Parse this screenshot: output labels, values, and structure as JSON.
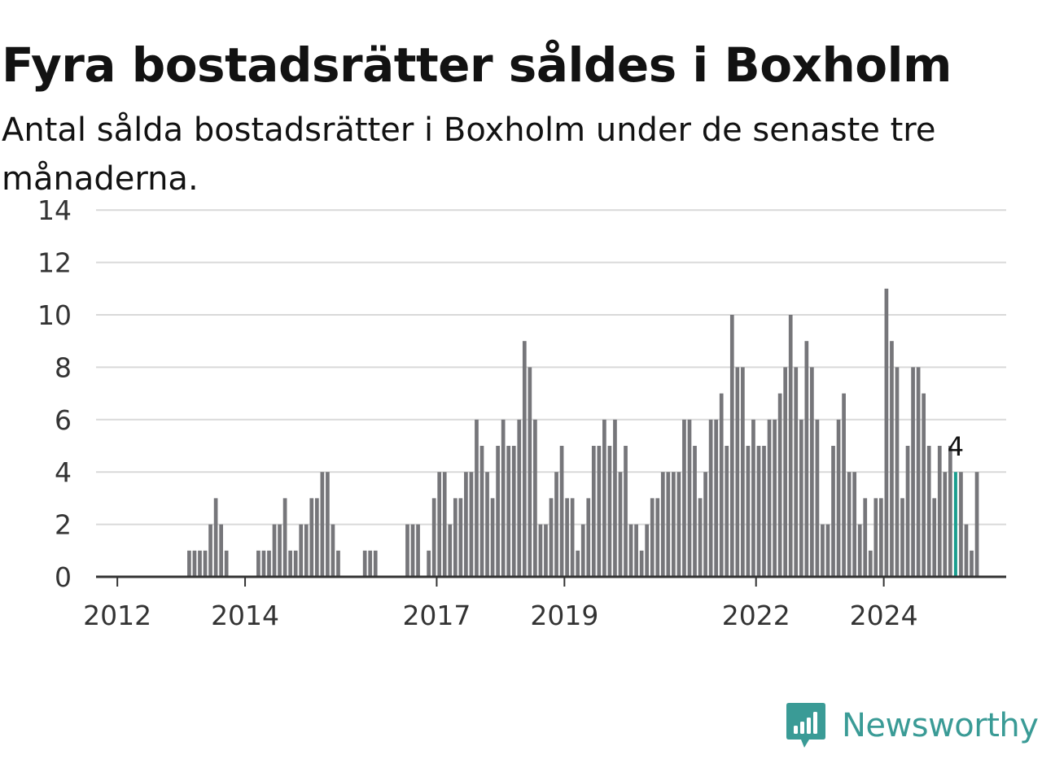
{
  "title": "Fyra bostadsrätter såldes i Boxholm",
  "subtitle": "Antal sålda bostadsrätter i Boxholm under de senaste tre månaderna.",
  "brand": {
    "name": "Newsworthy",
    "color": "#3a9b96",
    "icon": "newsworthy-bar-chart-logo-icon"
  },
  "colors": {
    "bar": "#76767a",
    "highlight": "#1a9e8f",
    "grid": "#d9d9d9",
    "axis": "#333333"
  },
  "chart_data": {
    "type": "bar",
    "title": "Fyra bostadsrätter såldes i Boxholm",
    "subtitle": "Antal sålda bostadsrätter i Boxholm under de senaste tre månaderna.",
    "xlabel": "",
    "ylabel": "",
    "ylim": [
      0,
      14
    ],
    "yticks": [
      0,
      2,
      4,
      6,
      8,
      10,
      12,
      14
    ],
    "grid": true,
    "x_range": [
      "2011-09",
      "2025-12"
    ],
    "start_month": "2011-09",
    "xtick_labels": [
      {
        "label": "2012",
        "date": "2012-01"
      },
      {
        "label": "2014",
        "date": "2014-01"
      },
      {
        "label": "2017",
        "date": "2017-01"
      },
      {
        "label": "2019",
        "date": "2019-01"
      },
      {
        "label": "2022",
        "date": "2022-01"
      },
      {
        "label": "2024",
        "date": "2024-01"
      }
    ],
    "values": [
      0,
      0,
      0,
      0,
      0,
      0,
      0,
      0,
      0,
      0,
      0,
      0,
      0,
      0,
      0,
      0,
      0,
      1,
      1,
      1,
      1,
      2,
      3,
      2,
      1,
      0,
      0,
      0,
      0,
      0,
      1,
      1,
      1,
      2,
      2,
      3,
      1,
      1,
      2,
      2,
      3,
      3,
      4,
      4,
      2,
      1,
      0,
      0,
      0,
      0,
      1,
      1,
      1,
      0,
      0,
      0,
      0,
      0,
      2,
      2,
      2,
      0,
      1,
      3,
      4,
      4,
      2,
      3,
      3,
      4,
      4,
      6,
      5,
      4,
      3,
      5,
      6,
      5,
      5,
      6,
      9,
      8,
      6,
      2,
      2,
      3,
      4,
      5,
      3,
      3,
      1,
      2,
      3,
      5,
      5,
      6,
      5,
      6,
      4,
      5,
      2,
      2,
      1,
      2,
      3,
      3,
      4,
      4,
      4,
      4,
      6,
      6,
      5,
      3,
      4,
      6,
      6,
      7,
      5,
      10,
      8,
      8,
      5,
      6,
      5,
      5,
      6,
      6,
      7,
      8,
      10,
      8,
      6,
      9,
      8,
      6,
      2,
      2,
      5,
      6,
      7,
      4,
      4,
      2,
      3,
      1,
      3,
      3,
      11,
      9,
      8,
      3,
      5,
      8,
      8,
      7,
      5,
      3,
      5,
      4,
      5,
      4,
      4,
      2,
      1,
      4
    ],
    "highlight": {
      "date": "2025-02",
      "value": 4,
      "label": "4"
    }
  }
}
